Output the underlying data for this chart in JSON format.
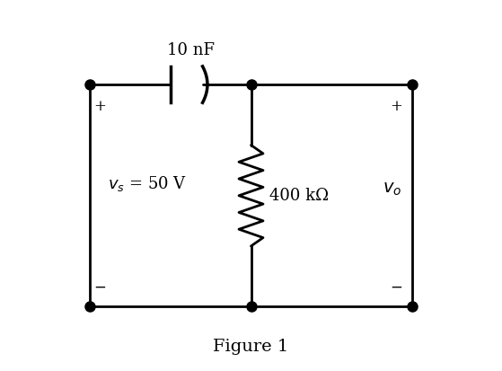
{
  "background_color": "#ffffff",
  "title": "Figure 1",
  "title_fontsize": 14,
  "line_color": "#000000",
  "line_width": 2.0,
  "dot_size": 8,
  "capacitor_label": "10 nF",
  "resistor_label": "400 kΩ",
  "vs_label": "$v_s$ = 50 V",
  "vo_label": "$v_o$",
  "plus_minus_fontsize": 12,
  "component_fontsize": 13,
  "vs_fontsize": 13
}
